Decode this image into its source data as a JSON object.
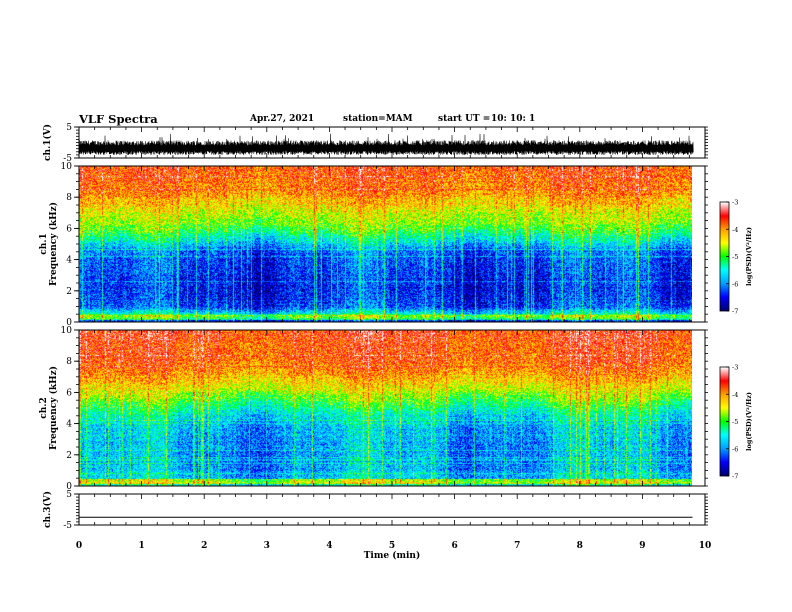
{
  "header": {
    "title": "VLF Spectra",
    "date": "Apr.27, 2021",
    "station": "station=MAM",
    "start_label": "start UT =",
    "start_time": "10: 10: 1"
  },
  "chart_data": [
    {
      "type": "line",
      "panel": "ch.1 waveform",
      "ylabel": "ch.1(V)",
      "ylim": [
        -5,
        5
      ],
      "yticks": [
        "5",
        "-5"
      ],
      "xlim": [
        0,
        10
      ],
      "trace": "dense noise around -2 V, amplitude about ±1.5 V"
    },
    {
      "type": "heatmap",
      "panel": "ch.1 spectrogram",
      "ylabel": "ch.1 Frequency (kHz)",
      "ylabel_lines": [
        "ch.1",
        "Frequency (kHz)"
      ],
      "ylim": [
        0,
        10
      ],
      "yticks": [
        "0",
        "2",
        "4",
        "6",
        "8",
        "10"
      ],
      "xlim": [
        0,
        10
      ],
      "data_end_min": 9.8,
      "color_scale": {
        "label": "log(PSD)(V²/Hz)",
        "min": -7,
        "max": -3,
        "ticks": [
          "-3",
          "-4",
          "-5",
          "-6",
          "-7"
        ],
        "colormap": [
          "#000070",
          "#0000ff",
          "#00a0ff",
          "#00ffff",
          "#00ff00",
          "#ffff00",
          "#ffa000",
          "#ff0000",
          "#ffffff"
        ]
      },
      "profile_khz_to_log_psd": [
        [
          0,
          -6.6
        ],
        [
          0.5,
          -5.5
        ],
        [
          1,
          -6.3
        ],
        [
          2,
          -6.5
        ],
        [
          3,
          -6.4
        ],
        [
          4,
          -6.3
        ],
        [
          4.6,
          -6.1
        ],
        [
          5.2,
          -5.6
        ],
        [
          6,
          -4.9
        ],
        [
          6.8,
          -4.6
        ],
        [
          7.5,
          -4.3
        ],
        [
          8.5,
          -3.9
        ],
        [
          10,
          -3.7
        ]
      ]
    },
    {
      "type": "heatmap",
      "panel": "ch.2 spectrogram",
      "ylabel": "ch.2 Frequency (kHz)",
      "ylabel_lines": [
        "ch.2",
        "Frequency (kHz)"
      ],
      "ylim": [
        0,
        10
      ],
      "yticks": [
        "0",
        "2",
        "4",
        "6",
        "8",
        "10"
      ],
      "xlim": [
        0,
        10
      ],
      "data_end_min": 9.8,
      "color_scale": {
        "label": "log(PSD)(V²/Hz)",
        "min": -7,
        "max": -3,
        "ticks": [
          "-3",
          "-4",
          "-5",
          "-6",
          "-7"
        ],
        "colormap": [
          "#000070",
          "#0000ff",
          "#00a0ff",
          "#00ffff",
          "#00ff00",
          "#ffff00",
          "#ffa000",
          "#ff0000",
          "#ffffff"
        ]
      },
      "profile_khz_to_log_psd": [
        [
          0,
          -5.4
        ],
        [
          0.4,
          -5.7
        ],
        [
          1,
          -5.9
        ],
        [
          2,
          -6.0
        ],
        [
          3,
          -5.9
        ],
        [
          4,
          -5.8
        ],
        [
          4.8,
          -5.4
        ],
        [
          5.4,
          -5.0
        ],
        [
          6.2,
          -4.5
        ],
        [
          7,
          -4.1
        ],
        [
          8,
          -3.8
        ],
        [
          10,
          -3.6
        ]
      ]
    },
    {
      "type": "line",
      "panel": "ch.3 waveform",
      "ylabel": "ch.3(V)",
      "ylim": [
        -5,
        5
      ],
      "yticks": [
        "5",
        "-5"
      ],
      "xlim": [
        0,
        10
      ],
      "trace": "flat line near -2.5 V"
    }
  ],
  "xaxis": {
    "label": "Time (min)",
    "ticks": [
      "0",
      "1",
      "2",
      "3",
      "4",
      "5",
      "6",
      "7",
      "8",
      "9",
      "10"
    ]
  }
}
